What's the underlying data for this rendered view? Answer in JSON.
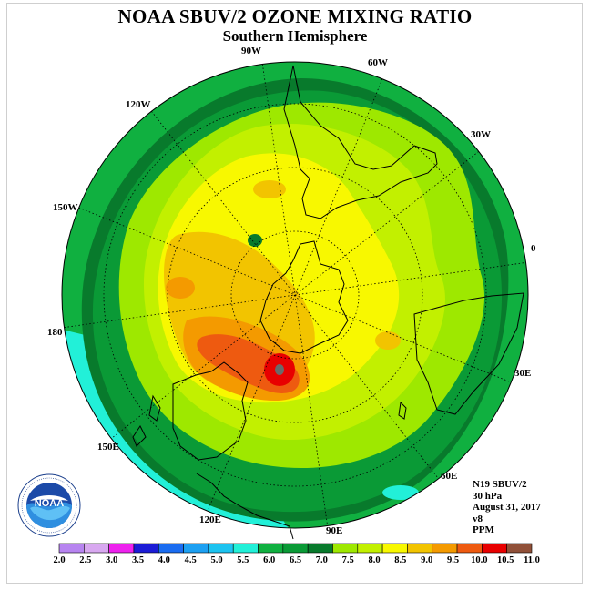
{
  "title": "NOAA SBUV/2 OZONE MIXING RATIO",
  "subtitle": "Southern Hemisphere",
  "longitude_labels": {
    "lon_90w": "90W",
    "lon_60w": "60W",
    "lon_120w": "120W",
    "lon_30w": "30W",
    "lon_150w": "150W",
    "lon_0": "0",
    "lon_180": "180",
    "lon_30e": "30E",
    "lon_150e": "150E",
    "lon_60e": "60E",
    "lon_120e": "120E",
    "lon_90e": "90E"
  },
  "info": {
    "satellite": "N19 SBUV/2",
    "level": "30 hPa",
    "date": "August 31, 2017",
    "version": "v8",
    "units": "PPM"
  },
  "logo": {
    "text": "NOAA",
    "ring_text": "NATIONAL OCEANIC AND ATMOSPHERIC ADMINISTRATION · U.S. DEPARTMENT OF COMMERCE"
  },
  "colorbar": {
    "labels": [
      "2.0",
      "2.5",
      "3.0",
      "3.5",
      "4.0",
      "4.5",
      "5.0",
      "5.5",
      "6.0",
      "6.5",
      "7.0",
      "7.5",
      "8.0",
      "8.5",
      "9.0",
      "9.5",
      "10.0",
      "10.5",
      "11.0"
    ],
    "colors": [
      "#b784f0",
      "#d8a8f0",
      "#ee22ee",
      "#1c1cd6",
      "#1a6cf0",
      "#1da0f2",
      "#1cc3f0",
      "#22f0d8",
      "#10b040",
      "#0a9a36",
      "#087a2c",
      "#9ee800",
      "#c2f000",
      "#f8f800",
      "#f2c400",
      "#f49a00",
      "#ee5a10",
      "#e80000",
      "#905038"
    ]
  },
  "colors": {
    "light_cyan": "#22f0d8",
    "green_60": "#10b040",
    "green_65": "#0a9a36",
    "green_70": "#087a2c",
    "green_75": "#9ee800",
    "green_80": "#c2f000",
    "yellow_85": "#f8f800",
    "orange_90": "#f2c400",
    "orange_95": "#f49a00",
    "redorange_100": "#ee5a10",
    "red_105": "#e80000"
  }
}
